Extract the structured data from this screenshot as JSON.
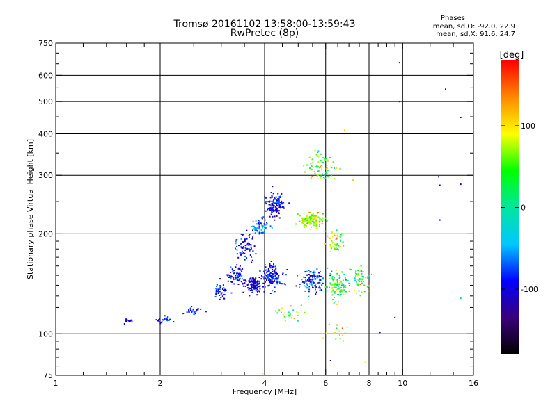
{
  "header": {
    "title_line1": "Tromsø 20161102 13:58:00-13:59:43",
    "title_line2": "RwPretec (8p)"
  },
  "info_box": {
    "label": "Phases",
    "line_o": "mean, sd,O: -92.0, 22.9",
    "line_x": "mean, sd,X:  91.6, 24.7"
  },
  "chart_data": {
    "type": "scatter",
    "title": "Tromsø 20161102 13:58:00-13:59:43",
    "subtitle": "RwPretec (8p)",
    "xlabel": "Frequency [MHz]",
    "ylabel": "Stationary phase Virtual Height [km]",
    "xscale": "log",
    "yscale": "log",
    "xlim": [
      1,
      16
    ],
    "ylim": [
      75,
      750
    ],
    "x_ticks": [
      1,
      2,
      4,
      6,
      8,
      10,
      16
    ],
    "x_tick_labels": [
      "1",
      "2",
      "4",
      "6",
      "8",
      "10",
      "16"
    ],
    "x_minor_ticks": [
      1.2,
      1.4,
      1.6,
      1.8,
      2.5,
      3,
      3.5,
      4.5,
      5,
      5.5,
      6.5,
      7,
      7.5,
      8.5,
      9,
      9.5,
      12,
      14
    ],
    "x_grid": [
      2,
      4,
      6,
      8,
      10
    ],
    "y_ticks": [
      75,
      100,
      200,
      300,
      400,
      500,
      600,
      750
    ],
    "y_tick_labels": [
      "75",
      "100",
      "200",
      "300",
      "400",
      "500",
      "600",
      "750"
    ],
    "y_minor_ticks": [
      80,
      85,
      90,
      95,
      110,
      120,
      130,
      140,
      150,
      160,
      170,
      180,
      190,
      250,
      350,
      450,
      550,
      650,
      700
    ],
    "y_grid": [
      100,
      200,
      300,
      400,
      500,
      600
    ],
    "grid": true,
    "colorbar": {
      "label": "[deg]",
      "min": -180,
      "max": 180,
      "ticks": [
        100,
        0,
        -100
      ],
      "tick_labels": [
        "100",
        "0",
        "-100"
      ],
      "stops": [
        "#000000",
        "#3a007a",
        "#0000ff",
        "#00c8ff",
        "#00e6a0",
        "#00ff00",
        "#ffff00",
        "#ff8800",
        "#ff0000"
      ]
    },
    "clusters": [
      {
        "x": 1.6,
        "y": 109,
        "sx": 0.04,
        "sy": 0.015,
        "n": 15,
        "phase": -95,
        "sp": 25
      },
      {
        "x": 2.05,
        "y": 110,
        "sx": 0.05,
        "sy": 0.02,
        "n": 25,
        "phase": -95,
        "sp": 25
      },
      {
        "x": 2.5,
        "y": 118,
        "sx": 0.05,
        "sy": 0.02,
        "n": 25,
        "phase": -90,
        "sp": 25
      },
      {
        "x": 3.0,
        "y": 135,
        "sx": 0.05,
        "sy": 0.05,
        "n": 40,
        "phase": -95,
        "sp": 30
      },
      {
        "x": 3.3,
        "y": 150,
        "sx": 0.05,
        "sy": 0.06,
        "n": 60,
        "phase": -95,
        "sp": 30
      },
      {
        "x": 3.5,
        "y": 185,
        "sx": 0.05,
        "sy": 0.08,
        "n": 70,
        "phase": -95,
        "sp": 35
      },
      {
        "x": 3.7,
        "y": 140,
        "sx": 0.05,
        "sy": 0.05,
        "n": 120,
        "phase": -100,
        "sp": 30
      },
      {
        "x": 4.2,
        "y": 150,
        "sx": 0.06,
        "sy": 0.07,
        "n": 130,
        "phase": -95,
        "sp": 35
      },
      {
        "x": 4.3,
        "y": 245,
        "sx": 0.06,
        "sy": 0.07,
        "n": 140,
        "phase": -100,
        "sp": 30
      },
      {
        "x": 3.9,
        "y": 210,
        "sx": 0.05,
        "sy": 0.05,
        "n": 60,
        "phase": -60,
        "sp": 60
      },
      {
        "x": 5.5,
        "y": 220,
        "sx": 0.07,
        "sy": 0.04,
        "n": 130,
        "phase": 75,
        "sp": 45
      },
      {
        "x": 5.5,
        "y": 145,
        "sx": 0.07,
        "sy": 0.07,
        "n": 110,
        "phase": -75,
        "sp": 50
      },
      {
        "x": 6.5,
        "y": 140,
        "sx": 0.06,
        "sy": 0.08,
        "n": 110,
        "phase": 40,
        "sp": 80
      },
      {
        "x": 5.8,
        "y": 320,
        "sx": 0.08,
        "sy": 0.08,
        "n": 70,
        "phase": 50,
        "sp": 80
      },
      {
        "x": 6.4,
        "y": 190,
        "sx": 0.05,
        "sy": 0.06,
        "n": 50,
        "phase": 70,
        "sp": 60
      },
      {
        "x": 7.6,
        "y": 145,
        "sx": 0.05,
        "sy": 0.08,
        "n": 55,
        "phase": 40,
        "sp": 90
      },
      {
        "x": 4.8,
        "y": 115,
        "sx": 0.1,
        "sy": 0.04,
        "n": 25,
        "phase": 60,
        "sp": 80
      },
      {
        "x": 6.6,
        "y": 100,
        "sx": 0.06,
        "sy": 0.06,
        "n": 14,
        "phase": 90,
        "sp": 60
      }
    ],
    "outliers": [
      {
        "x": 9.8,
        "y": 655,
        "phase": -105
      },
      {
        "x": 9.8,
        "y": 500,
        "phase": -110
      },
      {
        "x": 13.3,
        "y": 545,
        "phase": -110
      },
      {
        "x": 14.7,
        "y": 448,
        "phase": -110
      },
      {
        "x": 12.7,
        "y": 297,
        "phase": -110
      },
      {
        "x": 12.8,
        "y": 280,
        "phase": -110
      },
      {
        "x": 14.7,
        "y": 282,
        "phase": -105
      },
      {
        "x": 12.8,
        "y": 220,
        "phase": -110
      },
      {
        "x": 14.7,
        "y": 128,
        "phase": -20
      },
      {
        "x": 8.6,
        "y": 101,
        "phase": -110
      },
      {
        "x": 5.9,
        "y": 97,
        "phase": 110
      },
      {
        "x": 6.2,
        "y": 83,
        "phase": -115
      },
      {
        "x": 7.8,
        "y": 82,
        "phase": 90
      },
      {
        "x": 3.95,
        "y": 76,
        "phase": 80
      },
      {
        "x": 6.8,
        "y": 410,
        "phase": 110
      },
      {
        "x": 7.2,
        "y": 290,
        "phase": 115
      },
      {
        "x": 9.5,
        "y": 112,
        "phase": -100
      }
    ]
  }
}
